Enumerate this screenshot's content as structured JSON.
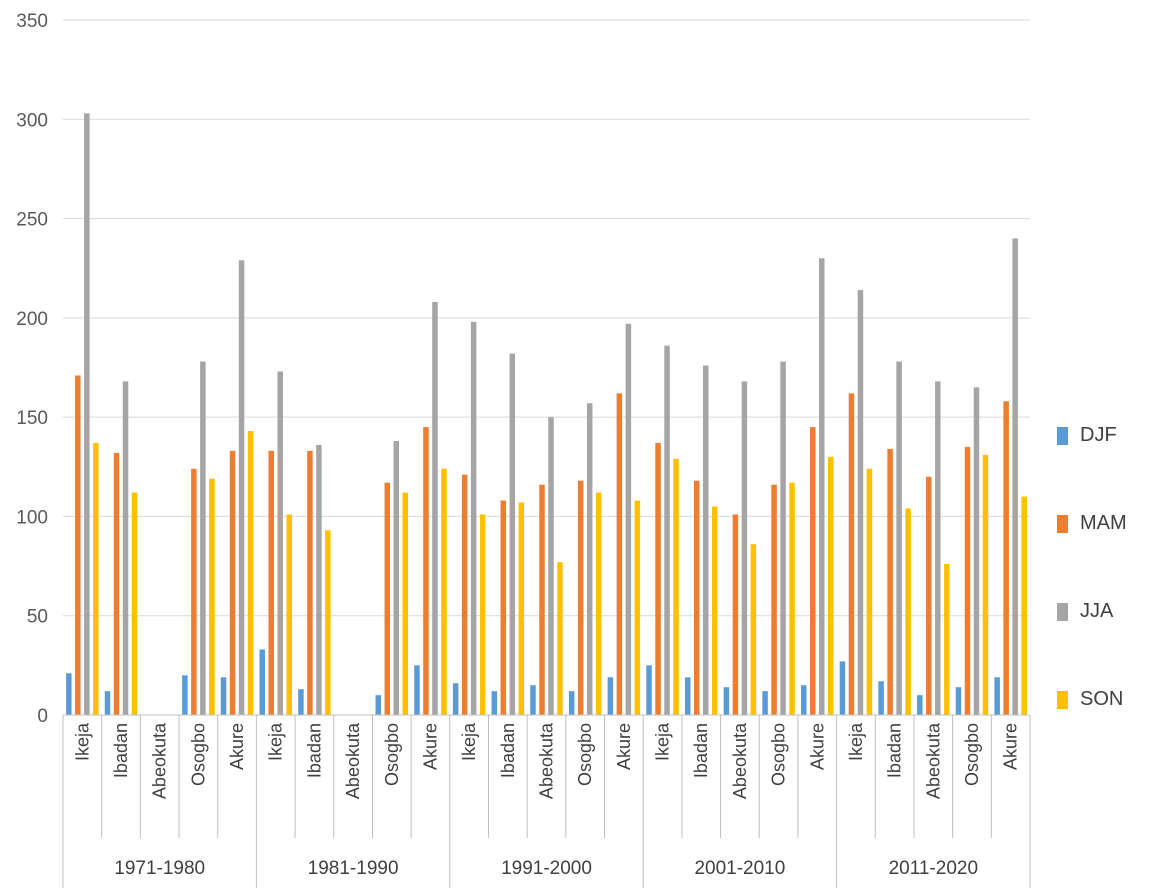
{
  "chart_data": {
    "type": "bar",
    "ylim": [
      0,
      350
    ],
    "yticks": [
      0,
      50,
      100,
      150,
      200,
      250,
      300,
      350
    ],
    "grid": true,
    "legend_position": "right",
    "groups": [
      {
        "label": "1971-1980",
        "categories": [
          "Ikeja",
          "Ibadan",
          "Abeokuta",
          "Osogbo",
          "Akure"
        ]
      },
      {
        "label": "1981-1990",
        "categories": [
          "Ikeja",
          "Ibadan",
          "Abeokuta",
          "Osogbo",
          "Akure"
        ]
      },
      {
        "label": "1991-2000",
        "categories": [
          "Ikeja",
          "Ibadan",
          "Abeokuta",
          "Osogbo",
          "Akure"
        ]
      },
      {
        "label": "2001-2010",
        "categories": [
          "Ikeja",
          "Ibadan",
          "Abeokuta",
          "Osogbo",
          "Akure"
        ]
      },
      {
        "label": "2011-2020",
        "categories": [
          "Ikeja",
          "Ibadan",
          "Abeokuta",
          "Osogbo",
          "Akure"
        ]
      }
    ],
    "series": [
      {
        "name": "DJF",
        "color": "#5b9bd5",
        "values": [
          21,
          12,
          0,
          20,
          19,
          33,
          13,
          0,
          10,
          25,
          16,
          12,
          15,
          12,
          19,
          25,
          19,
          14,
          12,
          15,
          27,
          17,
          10,
          14,
          19
        ]
      },
      {
        "name": "MAM",
        "color": "#ed7d31",
        "values": [
          171,
          132,
          0,
          124,
          133,
          133,
          133,
          0,
          117,
          145,
          121,
          108,
          116,
          118,
          162,
          137,
          118,
          101,
          116,
          145,
          162,
          134,
          120,
          135,
          158
        ]
      },
      {
        "name": "JJA",
        "color": "#a5a5a5",
        "values": [
          303,
          168,
          0,
          178,
          229,
          173,
          136,
          0,
          138,
          208,
          198,
          182,
          150,
          157,
          197,
          186,
          176,
          168,
          178,
          230,
          214,
          178,
          168,
          165,
          240
        ]
      },
      {
        "name": "SON",
        "color": "#ffc000",
        "values": [
          137,
          112,
          0,
          119,
          143,
          101,
          93,
          0,
          112,
          124,
          101,
          107,
          77,
          112,
          108,
          129,
          105,
          86,
          117,
          130,
          124,
          104,
          76,
          131,
          110
        ]
      }
    ]
  }
}
